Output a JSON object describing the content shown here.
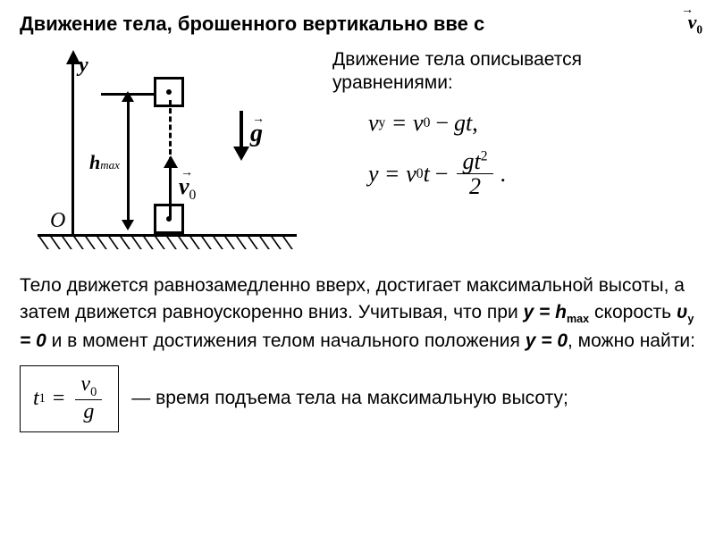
{
  "title": "Движение тела, брошенного вертикально вве   с",
  "corner_symbol": "v",
  "corner_sub": "0",
  "eq_intro": "Движение тела описывается уравнениями:",
  "equations": {
    "eq1_lhs": "v",
    "eq1_lhs_sub": "y",
    "eq1_rhs_a": "v",
    "eq1_rhs_a_sub": "0",
    "eq1_rhs_b": "gt",
    "eq2_lhs": "y",
    "eq2_rhs_a": "v",
    "eq2_rhs_a_sub": "0",
    "eq2_rhs_b": "t",
    "eq2_frac_num_a": "gt",
    "eq2_frac_num_sup": "2",
    "eq2_frac_den": "2"
  },
  "paragraph": {
    "p1": "Тело движется равнозамедленно вверх, достигает максимальной высоты, а затем движется равноускоренно вниз. Учитывая, что при ",
    "y_eq_h": "y = h",
    "max_sub": "max",
    "speed_word": " скорость ",
    "uy0": "υ",
    "uy0_sub": "y",
    "uy0_val": " = 0",
    "p2": " и в момент достижения телом начального положения ",
    "y0": "y = 0",
    "p3": ", можно найти:"
  },
  "formula": {
    "lhs": "t",
    "lhs_sub": "1",
    "num": "v",
    "num_sub": "0",
    "den": "g"
  },
  "formula_text": "— время подъема тела на максимальную высоту;",
  "diagram": {
    "y_label": "y",
    "origin": "O",
    "hmax": "h",
    "hmax_sub": "max",
    "v0": "v",
    "v0_sub": "0",
    "g": "g",
    "hatch_count": 22,
    "hatch_spacing": 13
  }
}
